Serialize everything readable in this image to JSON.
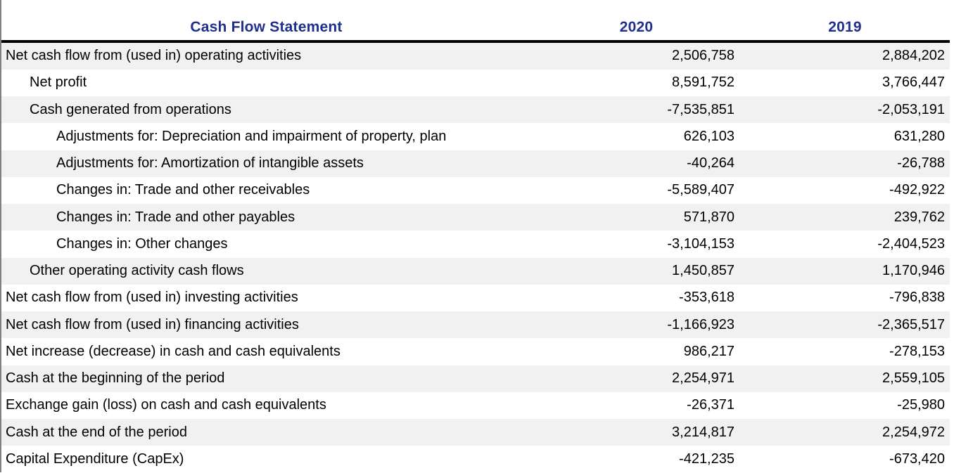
{
  "colors": {
    "header_text": "#1f2f8f",
    "stripe": "#f1f1f1",
    "body_text": "#000000",
    "left_gridline": "#808080",
    "header_divider": "#000000",
    "background": "#ffffff"
  },
  "table": {
    "columns": [
      "Cash Flow Statement",
      "2020",
      "2019"
    ],
    "rows": [
      {
        "label": "Net cash flow from (used in) operating activities",
        "indent": 0,
        "values": [
          "2,506,758",
          "2,884,202"
        ]
      },
      {
        "label": "Net profit",
        "indent": 1,
        "values": [
          "8,591,752",
          "3,766,447"
        ]
      },
      {
        "label": "Cash generated from operations",
        "indent": 1,
        "values": [
          "-7,535,851",
          "-2,053,191"
        ]
      },
      {
        "label": "Adjustments for: Depreciation and impairment of property, plan",
        "indent": 2,
        "values": [
          "626,103",
          "631,280"
        ]
      },
      {
        "label": "Adjustments for: Amortization of intangible assets",
        "indent": 2,
        "values": [
          "-40,264",
          "-26,788"
        ]
      },
      {
        "label": "Changes in: Trade and other receivables",
        "indent": 2,
        "values": [
          "-5,589,407",
          "-492,922"
        ]
      },
      {
        "label": "Changes in: Trade and other payables",
        "indent": 2,
        "values": [
          "571,870",
          "239,762"
        ]
      },
      {
        "label": "Changes in: Other changes",
        "indent": 2,
        "values": [
          "-3,104,153",
          "-2,404,523"
        ]
      },
      {
        "label": "Other operating activity cash flows",
        "indent": 1,
        "values": [
          "1,450,857",
          "1,170,946"
        ]
      },
      {
        "label": "Net cash flow from (used in) investing activities",
        "indent": 0,
        "values": [
          "-353,618",
          "-796,838"
        ]
      },
      {
        "label": "Net cash flow from (used in) financing activities",
        "indent": 0,
        "values": [
          "-1,166,923",
          "-2,365,517"
        ]
      },
      {
        "label": "Net increase (decrease) in cash and cash equivalents",
        "indent": 0,
        "values": [
          "986,217",
          "-278,153"
        ]
      },
      {
        "label": "Cash at the beginning of the period",
        "indent": 0,
        "values": [
          "2,254,971",
          "2,559,105"
        ]
      },
      {
        "label": "Exchange gain (loss) on cash and cash equivalents",
        "indent": 0,
        "values": [
          "-26,371",
          "-25,980"
        ]
      },
      {
        "label": "Cash at the end of the period",
        "indent": 0,
        "values": [
          "3,214,817",
          "2,254,972"
        ]
      },
      {
        "label": "Capital Expenditure (CapEx)",
        "indent": 0,
        "values": [
          "-421,235",
          "-673,420"
        ]
      }
    ]
  }
}
